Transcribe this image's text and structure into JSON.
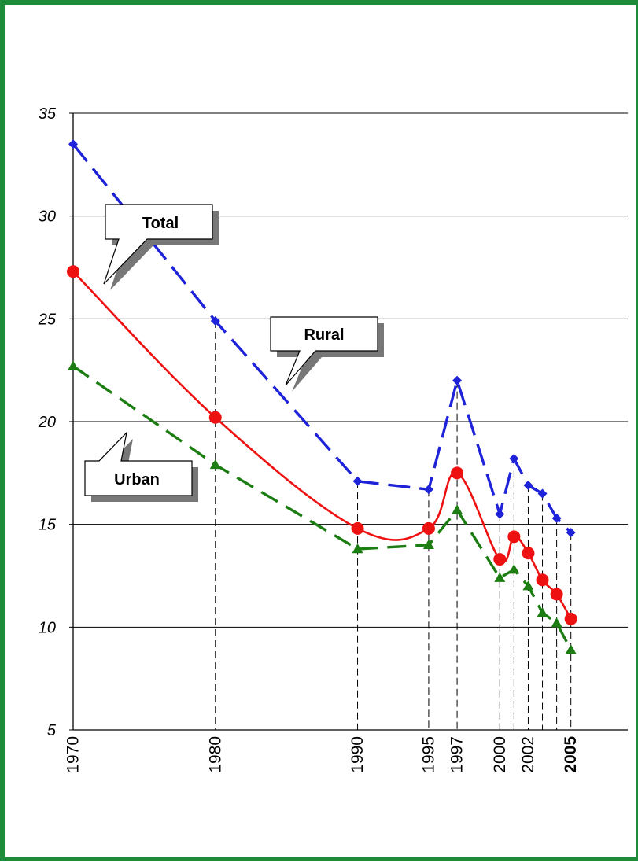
{
  "chart_data": {
    "type": "line",
    "title": "",
    "xlabel": "",
    "ylabel": "",
    "ylim": [
      5,
      35
    ],
    "y_ticks": [
      5,
      10,
      15,
      20,
      25,
      30,
      35
    ],
    "y_tick_labels": [
      "5",
      "10",
      "15",
      "20",
      "25",
      "30",
      "35"
    ],
    "x_range": [
      1970,
      2009
    ],
    "x_tick_values": [
      1970,
      1980,
      1990,
      1995,
      1997,
      2000,
      2002,
      2005
    ],
    "x_tick_labels": [
      "1970",
      "1980",
      "1990",
      "1995",
      "1997",
      "2000",
      "2002",
      "2005"
    ],
    "x_tick_bold": [
      "2005"
    ],
    "grid": "horizontal",
    "year_drop_lines": [
      1980,
      1990,
      1995,
      1997,
      2000,
      2001,
      2002,
      2003,
      2004,
      2005
    ],
    "series": [
      {
        "name": "Rural",
        "color": "#1e22d8",
        "line_style": "long-dash",
        "marker": "diamond",
        "points": [
          {
            "x": 1970,
            "y": 33.5
          },
          {
            "x": 1980,
            "y": 24.9
          },
          {
            "x": 1990,
            "y": 17.1
          },
          {
            "x": 1995,
            "y": 16.7
          },
          {
            "x": 1997,
            "y": 22.0
          },
          {
            "x": 2000,
            "y": 15.5
          },
          {
            "x": 2001,
            "y": 18.2
          },
          {
            "x": 2002,
            "y": 16.9
          },
          {
            "x": 2003,
            "y": 16.5
          },
          {
            "x": 2004,
            "y": 15.3
          },
          {
            "x": 2005,
            "y": 14.6
          }
        ]
      },
      {
        "name": "Total",
        "color": "#ee1111",
        "line_style": "solid-smooth",
        "marker": "circle",
        "points": [
          {
            "x": 1970,
            "y": 27.3
          },
          {
            "x": 1980,
            "y": 20.2
          },
          {
            "x": 1990,
            "y": 14.8
          },
          {
            "x": 1995,
            "y": 14.8
          },
          {
            "x": 1997,
            "y": 17.5
          },
          {
            "x": 2000,
            "y": 13.3
          },
          {
            "x": 2001,
            "y": 14.4
          },
          {
            "x": 2002,
            "y": 13.6
          },
          {
            "x": 2003,
            "y": 12.3
          },
          {
            "x": 2004,
            "y": 11.6
          },
          {
            "x": 2005,
            "y": 10.4
          }
        ]
      },
      {
        "name": "Urban",
        "color": "#1c7e12",
        "line_style": "dash",
        "marker": "triangle",
        "points": [
          {
            "x": 1970,
            "y": 22.7
          },
          {
            "x": 1980,
            "y": 17.9
          },
          {
            "x": 1990,
            "y": 13.8
          },
          {
            "x": 1995,
            "y": 14.0
          },
          {
            "x": 1997,
            "y": 15.7
          },
          {
            "x": 2000,
            "y": 12.4
          },
          {
            "x": 2001,
            "y": 12.8
          },
          {
            "x": 2002,
            "y": 12.0
          },
          {
            "x": 2003,
            "y": 10.7
          },
          {
            "x": 2004,
            "y": 10.2
          },
          {
            "x": 2005,
            "y": 8.9
          }
        ]
      }
    ],
    "callouts": [
      {
        "label": "Total",
        "series": "Total"
      },
      {
        "label": "Rural",
        "series": "Rural"
      },
      {
        "label": "Urban",
        "series": "Urban"
      }
    ]
  }
}
